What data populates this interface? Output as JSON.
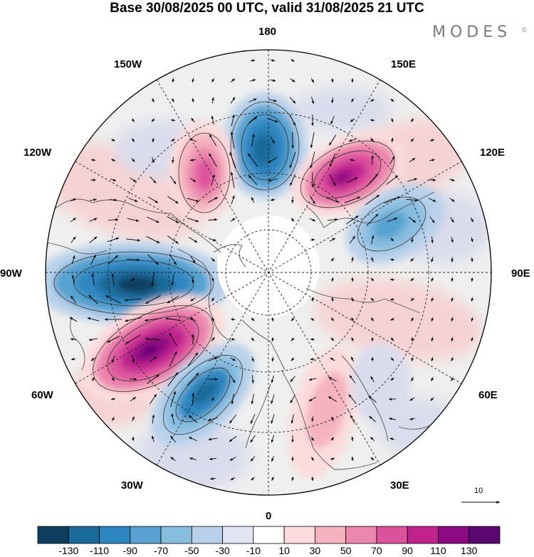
{
  "header": {
    "title": "Base 30/08/2025 00 UTC, valid 31/08/2025 21 UTC",
    "brand": "MODES",
    "brand_mark": "©"
  },
  "map": {
    "projection": "north-polar-stereographic",
    "longitude_labels": {
      "top": "180",
      "bottom": "0",
      "left": "90W",
      "right": "90E",
      "upper_left_1": "150W",
      "upper_left_2": "120W",
      "upper_right_1": "150E",
      "upper_right_2": "120E",
      "lower_left_1": "60W",
      "lower_left_2": "30W",
      "lower_right_1": "60E",
      "lower_right_2": "30E"
    },
    "anomaly_centers": [
      {
        "id": "aleutian-low",
        "sign": "negative",
        "peak": -110
      },
      {
        "id": "gulf-alaska-high",
        "sign": "positive",
        "peak": 90
      },
      {
        "id": "okhotsk-high",
        "sign": "positive",
        "peak": 110
      },
      {
        "id": "siberia-low",
        "sign": "negative",
        "peak": -70
      },
      {
        "id": "north-america-low",
        "sign": "negative",
        "peak": -130
      },
      {
        "id": "north-atlantic-high",
        "sign": "positive",
        "peak": 130
      },
      {
        "id": "greenland-sea-low",
        "sign": "negative",
        "peak": -110
      },
      {
        "id": "scandinavia-high",
        "sign": "positive",
        "peak": 50
      },
      {
        "id": "europe-low",
        "sign": "negative",
        "peak": -30
      }
    ],
    "reference_vector": "10"
  },
  "colorbar": {
    "tick_labels": [
      "-130",
      "-110",
      "-90",
      "-70",
      "-50",
      "-30",
      "-10",
      "10",
      "30",
      "50",
      "70",
      "90",
      "110",
      "130"
    ],
    "colors": [
      "#0f3d5e",
      "#1c6a9a",
      "#2e86c0",
      "#57a2d0",
      "#88bde0",
      "#b9d1ea",
      "#e3e4f2",
      "#ffffff",
      "#fbdcdc",
      "#f5b3c0",
      "#ec86ad",
      "#dd529d",
      "#c0228e",
      "#8e0a82",
      "#5b0673"
    ]
  }
}
